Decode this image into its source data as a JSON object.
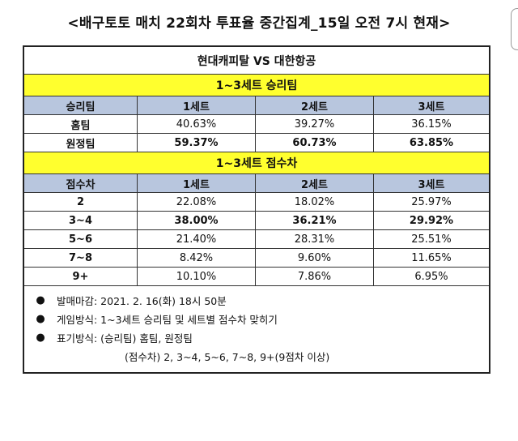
{
  "page_title": "<배구토토 매치 22회차 투표율 중간집계_15일 오전 7시 현재>",
  "match": "현대캐피탈 VS 대한항공",
  "win_section": {
    "title": "1~3세트 승리팀",
    "headers": [
      "승리팀",
      "1세트",
      "2세트",
      "3세트"
    ],
    "rows": [
      {
        "label": "홈팀",
        "values": [
          "40.63%",
          "39.27%",
          "36.15%"
        ],
        "bold": false
      },
      {
        "label": "원정팀",
        "values": [
          "59.37%",
          "60.73%",
          "63.85%"
        ],
        "bold": true
      }
    ]
  },
  "diff_section": {
    "title": "1~3세트 점수차",
    "headers": [
      "점수차",
      "1세트",
      "2세트",
      "3세트"
    ],
    "rows": [
      {
        "label": "2",
        "values": [
          "22.08%",
          "18.02%",
          "25.97%"
        ],
        "bold": false
      },
      {
        "label": "3~4",
        "values": [
          "38.00%",
          "36.21%",
          "29.92%"
        ],
        "bold": true
      },
      {
        "label": "5~6",
        "values": [
          "21.40%",
          "28.31%",
          "25.51%"
        ],
        "bold": false
      },
      {
        "label": "7~8",
        "values": [
          "8.42%",
          "9.60%",
          "11.65%"
        ],
        "bold": false
      },
      {
        "label": "9+",
        "values": [
          "10.10%",
          "7.86%",
          "6.95%"
        ],
        "bold": false
      }
    ]
  },
  "notes": {
    "bullet": "●",
    "deadline": "발매마감: 2021. 2. 16(화) 18시 50분",
    "method": "게임방식: 1~3세트 승리팀 및 세트별 점수차 맞히기",
    "marking": "표기방식: (승리팀) 홈팀, 원정팀",
    "marking_sub": "(점수차) 2, 3~4, 5~6, 7~8, 9+(9점차 이상)"
  }
}
